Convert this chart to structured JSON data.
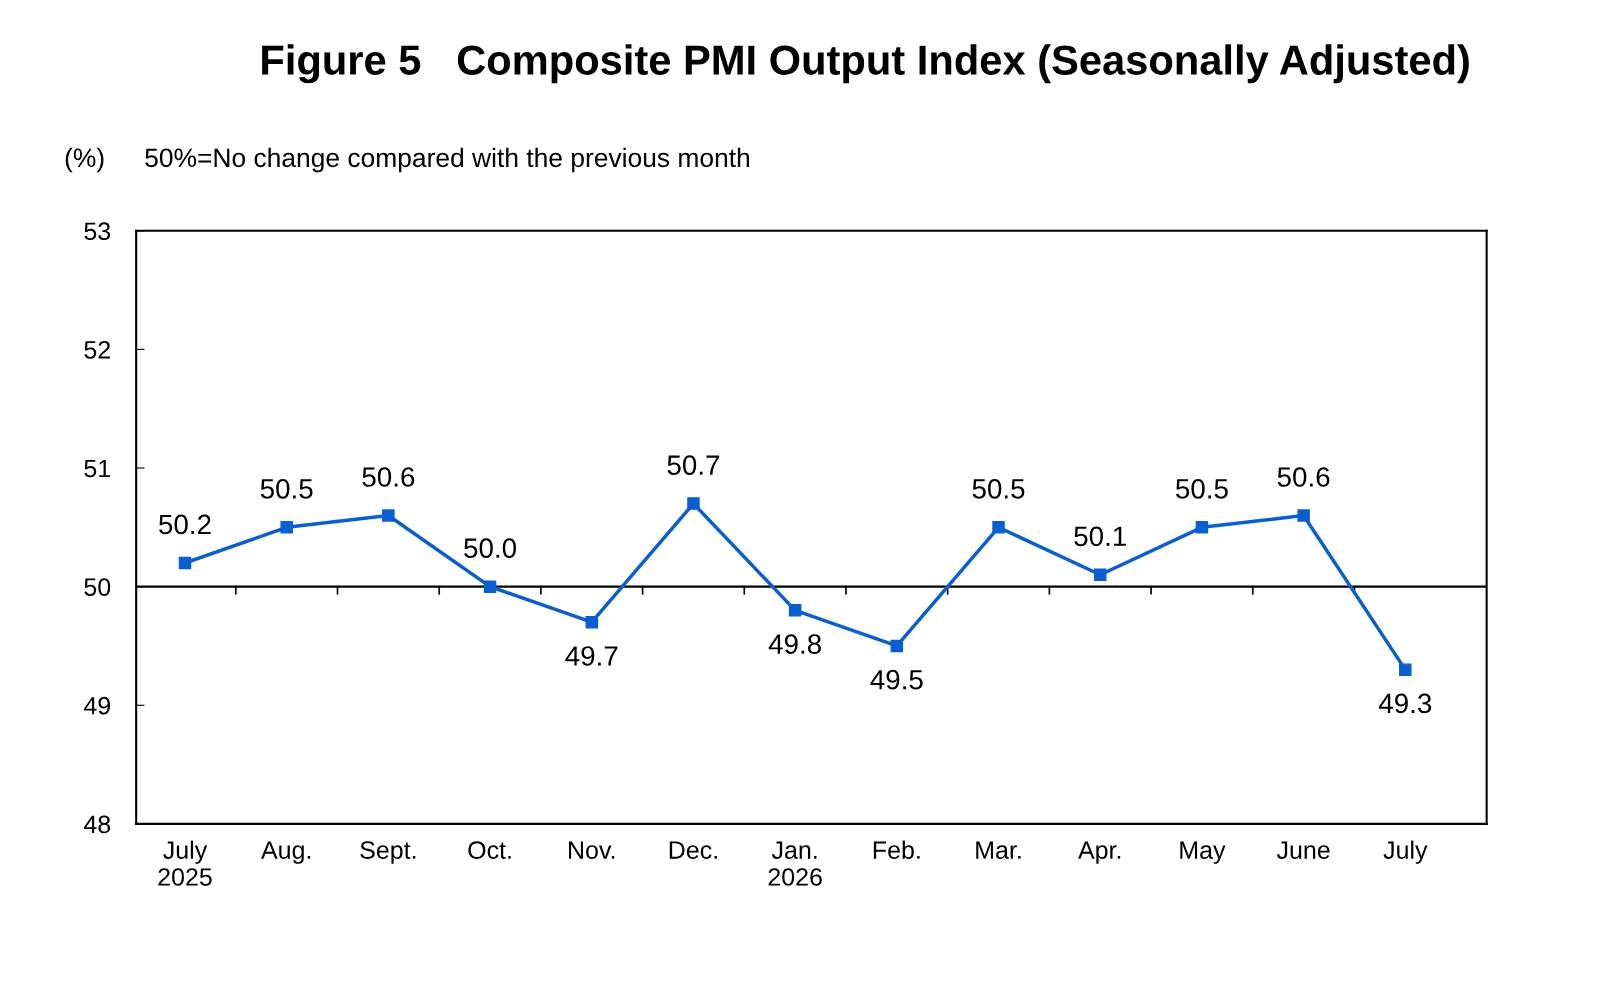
{
  "chart_data": {
    "type": "line",
    "title": "Figure 5   Composite PMI Output Index (Seasonally Adjusted)",
    "ylabel": "(%)",
    "subtitle": "50%=No change compared with the previous month",
    "categories": [
      "July\n2025",
      "Aug.",
      "Sept.",
      "Oct.",
      "Nov.",
      "Dec.",
      "Jan.\n2026",
      "Feb.",
      "Mar.",
      "Apr.",
      "May",
      "June",
      "July"
    ],
    "series": [
      {
        "color": "#0a5fd0",
        "values": [
          50.2,
          50.5,
          50.6,
          50.0,
          49.7,
          50.7,
          49.8,
          49.5,
          50.5,
          50.1,
          50.5,
          50.6,
          49.3
        ],
        "value_labels": [
          "50.2",
          "50.5",
          "50.6",
          "50.0",
          "49.7",
          "50.7",
          "49.8",
          "49.5",
          "50.5",
          "50.1",
          "50.5",
          "50.6",
          "49.3"
        ]
      }
    ],
    "ylim": [
      48,
      53
    ],
    "yticks": [
      48,
      49,
      50,
      51,
      52,
      53
    ],
    "grid": false,
    "marker": "square",
    "line_style": "solid",
    "ref_lines": [
      {
        "axis": "y",
        "value": 50,
        "color": "#000000"
      }
    ]
  }
}
